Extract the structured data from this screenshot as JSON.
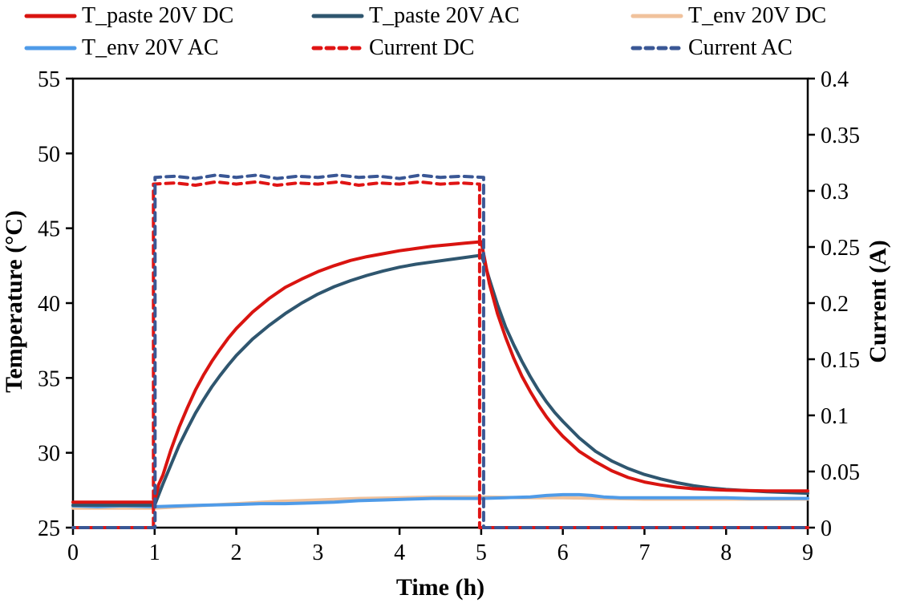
{
  "colors": {
    "paste_dc_red": "#d91410",
    "paste_ac_navy": "#2f566f",
    "env_dc_peach": "#f0c29c",
    "env_ac_blue": "#4f9be8",
    "current_dc_red": "#e01414",
    "current_ac_navy": "#3a5795",
    "axis_black": "#000000"
  },
  "legend": {
    "items": [
      {
        "label": "T_paste 20V DC",
        "series": 3
      },
      {
        "label": "T_paste 20V AC",
        "series": 2
      },
      {
        "label": "T_env 20V DC",
        "series": 0
      },
      {
        "label": "T_env 20V AC",
        "series": 1
      },
      {
        "label": "Current DC",
        "series": 4
      },
      {
        "label": "Current AC",
        "series": 5
      }
    ]
  },
  "chart_data": {
    "type": "line",
    "title": "",
    "xlabel": "Time (h)",
    "ylabel_left": "Temperature (°C)",
    "ylabel_right": "Current (A)",
    "x_range": [
      0,
      9
    ],
    "x_ticks": [
      "0",
      "1",
      "2",
      "3",
      "4",
      "5",
      "6",
      "7",
      "8",
      "9"
    ],
    "yleft_range": [
      25,
      55
    ],
    "yleft_ticks": [
      "25",
      "30",
      "35",
      "40",
      "45",
      "50",
      "55"
    ],
    "yright_range": [
      0,
      0.4
    ],
    "yright_ticks": [
      "0",
      "0.05",
      "0.1",
      "0.15",
      "0.2",
      "0.25",
      "0.3",
      "0.35",
      "0.4"
    ],
    "grid": false,
    "legend_position": "top",
    "series": [
      {
        "name": "T_env 20V DC",
        "axis": "left",
        "color": "#f0c29c",
        "style": "solid",
        "width": 4,
        "points": [
          [
            0,
            26.3
          ],
          [
            0.5,
            26.3
          ],
          [
            1.0,
            26.3
          ],
          [
            1.5,
            26.45
          ],
          [
            2.0,
            26.6
          ],
          [
            2.5,
            26.75
          ],
          [
            3.0,
            26.85
          ],
          [
            3.5,
            26.95
          ],
          [
            4.0,
            27.0
          ],
          [
            4.5,
            27.05
          ],
          [
            5.0,
            27.05
          ],
          [
            5.5,
            27.0
          ],
          [
            6.0,
            27.0
          ],
          [
            6.5,
            26.95
          ],
          [
            7.0,
            26.9
          ],
          [
            7.5,
            26.9
          ],
          [
            8.0,
            26.9
          ],
          [
            8.5,
            26.9
          ],
          [
            9.0,
            26.9
          ]
        ]
      },
      {
        "name": "T_env 20V AC",
        "axis": "left",
        "color": "#4f9be8",
        "style": "solid",
        "width": 4,
        "points": [
          [
            0,
            26.45
          ],
          [
            0.3,
            26.4
          ],
          [
            0.6,
            26.45
          ],
          [
            1.0,
            26.4
          ],
          [
            1.3,
            26.45
          ],
          [
            1.6,
            26.5
          ],
          [
            2.0,
            26.55
          ],
          [
            2.3,
            26.6
          ],
          [
            2.6,
            26.6
          ],
          [
            2.9,
            26.65
          ],
          [
            3.2,
            26.7
          ],
          [
            3.5,
            26.8
          ],
          [
            3.8,
            26.85
          ],
          [
            4.1,
            26.9
          ],
          [
            4.4,
            26.95
          ],
          [
            4.7,
            26.95
          ],
          [
            5.0,
            26.95
          ],
          [
            5.3,
            27.0
          ],
          [
            5.6,
            27.05
          ],
          [
            5.8,
            27.15
          ],
          [
            6.0,
            27.2
          ],
          [
            6.2,
            27.2
          ],
          [
            6.35,
            27.15
          ],
          [
            6.5,
            27.05
          ],
          [
            6.7,
            27.0
          ],
          [
            7.0,
            27.0
          ],
          [
            7.5,
            27.0
          ],
          [
            8.0,
            27.0
          ],
          [
            8.3,
            26.95
          ],
          [
            9.0,
            26.95
          ]
        ]
      },
      {
        "name": "T_paste 20V AC",
        "axis": "left",
        "color": "#2f566f",
        "style": "solid",
        "width": 4,
        "points": [
          [
            0,
            26.5
          ],
          [
            0.5,
            26.5
          ],
          [
            1.0,
            26.5
          ],
          [
            1.05,
            27.2
          ],
          [
            1.1,
            27.9
          ],
          [
            1.2,
            29.2
          ],
          [
            1.3,
            30.5
          ],
          [
            1.4,
            31.6
          ],
          [
            1.5,
            32.65
          ],
          [
            1.6,
            33.55
          ],
          [
            1.7,
            34.4
          ],
          [
            1.8,
            35.15
          ],
          [
            1.9,
            35.85
          ],
          [
            2.0,
            36.5
          ],
          [
            2.2,
            37.6
          ],
          [
            2.4,
            38.5
          ],
          [
            2.6,
            39.3
          ],
          [
            2.8,
            40.0
          ],
          [
            3.0,
            40.6
          ],
          [
            3.2,
            41.1
          ],
          [
            3.4,
            41.5
          ],
          [
            3.6,
            41.85
          ],
          [
            3.8,
            42.15
          ],
          [
            4.0,
            42.4
          ],
          [
            4.2,
            42.6
          ],
          [
            4.4,
            42.75
          ],
          [
            4.6,
            42.9
          ],
          [
            4.8,
            43.05
          ],
          [
            5.0,
            43.2
          ],
          [
            5.05,
            42.5
          ],
          [
            5.1,
            41.6
          ],
          [
            5.2,
            39.9
          ],
          [
            5.3,
            38.4
          ],
          [
            5.4,
            37.2
          ],
          [
            5.5,
            36.1
          ],
          [
            5.6,
            35.1
          ],
          [
            5.7,
            34.2
          ],
          [
            5.8,
            33.4
          ],
          [
            5.9,
            32.7
          ],
          [
            6.0,
            32.1
          ],
          [
            6.2,
            31.0
          ],
          [
            6.4,
            30.1
          ],
          [
            6.6,
            29.45
          ],
          [
            6.8,
            28.95
          ],
          [
            7.0,
            28.55
          ],
          [
            7.2,
            28.25
          ],
          [
            7.4,
            28.0
          ],
          [
            7.6,
            27.8
          ],
          [
            7.8,
            27.65
          ],
          [
            8.0,
            27.55
          ],
          [
            8.5,
            27.4
          ],
          [
            9.0,
            27.3
          ]
        ]
      },
      {
        "name": "T_paste 20V DC",
        "axis": "left",
        "color": "#d91410",
        "style": "solid",
        "width": 4,
        "points": [
          [
            0,
            26.7
          ],
          [
            0.5,
            26.7
          ],
          [
            0.99,
            26.7
          ],
          [
            1.02,
            27.2
          ],
          [
            1.05,
            27.9
          ],
          [
            1.1,
            28.5
          ],
          [
            1.2,
            30.2
          ],
          [
            1.3,
            31.7
          ],
          [
            1.4,
            33.0
          ],
          [
            1.5,
            34.2
          ],
          [
            1.6,
            35.2
          ],
          [
            1.7,
            36.1
          ],
          [
            1.8,
            36.9
          ],
          [
            1.9,
            37.65
          ],
          [
            2.0,
            38.3
          ],
          [
            2.2,
            39.4
          ],
          [
            2.4,
            40.3
          ],
          [
            2.6,
            41.05
          ],
          [
            2.8,
            41.6
          ],
          [
            3.0,
            42.1
          ],
          [
            3.2,
            42.5
          ],
          [
            3.4,
            42.85
          ],
          [
            3.6,
            43.1
          ],
          [
            3.8,
            43.3
          ],
          [
            4.0,
            43.5
          ],
          [
            4.2,
            43.65
          ],
          [
            4.4,
            43.8
          ],
          [
            4.6,
            43.9
          ],
          [
            4.8,
            44.0
          ],
          [
            5.0,
            44.1
          ],
          [
            5.04,
            43.0
          ],
          [
            5.1,
            41.3
          ],
          [
            5.2,
            39.3
          ],
          [
            5.3,
            37.7
          ],
          [
            5.4,
            36.3
          ],
          [
            5.5,
            35.1
          ],
          [
            5.6,
            34.1
          ],
          [
            5.7,
            33.2
          ],
          [
            5.8,
            32.4
          ],
          [
            5.9,
            31.7
          ],
          [
            6.0,
            31.1
          ],
          [
            6.2,
            30.1
          ],
          [
            6.4,
            29.4
          ],
          [
            6.6,
            28.8
          ],
          [
            6.8,
            28.35
          ],
          [
            7.0,
            28.05
          ],
          [
            7.2,
            27.85
          ],
          [
            7.4,
            27.7
          ],
          [
            7.6,
            27.6
          ],
          [
            7.8,
            27.55
          ],
          [
            8.0,
            27.5
          ],
          [
            8.5,
            27.45
          ],
          [
            9.0,
            27.45
          ]
        ]
      },
      {
        "name": "Current DC",
        "axis": "right",
        "color": "#e01414",
        "style": "dashed",
        "width": 4,
        "points": [
          [
            0,
            0
          ],
          [
            0.985,
            0
          ],
          [
            0.985,
            0.306
          ],
          [
            1.25,
            0.307
          ],
          [
            1.5,
            0.305
          ],
          [
            1.75,
            0.308
          ],
          [
            2.0,
            0.306
          ],
          [
            2.25,
            0.308
          ],
          [
            2.5,
            0.305
          ],
          [
            2.75,
            0.307
          ],
          [
            3.0,
            0.306
          ],
          [
            3.25,
            0.308
          ],
          [
            3.5,
            0.305
          ],
          [
            3.75,
            0.307
          ],
          [
            4.0,
            0.306
          ],
          [
            4.25,
            0.308
          ],
          [
            4.5,
            0.306
          ],
          [
            4.75,
            0.307
          ],
          [
            4.98,
            0.306
          ],
          [
            4.98,
            0
          ],
          [
            9,
            0
          ]
        ]
      },
      {
        "name": "Current AC",
        "axis": "right",
        "color": "#3a5795",
        "style": "dashed",
        "width": 4,
        "points": [
          [
            0,
            0
          ],
          [
            1.005,
            0
          ],
          [
            1.005,
            0.312
          ],
          [
            1.25,
            0.313
          ],
          [
            1.5,
            0.311
          ],
          [
            1.75,
            0.314
          ],
          [
            2.0,
            0.312
          ],
          [
            2.25,
            0.314
          ],
          [
            2.5,
            0.311
          ],
          [
            2.75,
            0.313
          ],
          [
            3.0,
            0.312
          ],
          [
            3.25,
            0.314
          ],
          [
            3.5,
            0.312
          ],
          [
            3.75,
            0.313
          ],
          [
            4.0,
            0.311
          ],
          [
            4.25,
            0.314
          ],
          [
            4.5,
            0.312
          ],
          [
            4.75,
            0.313
          ],
          [
            5.03,
            0.312
          ],
          [
            5.03,
            0
          ],
          [
            9,
            0
          ]
        ]
      }
    ]
  }
}
